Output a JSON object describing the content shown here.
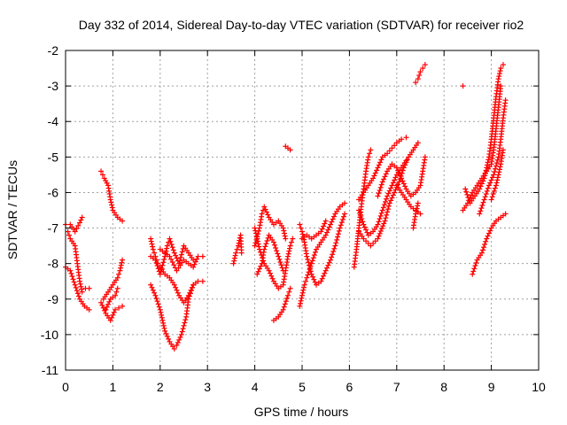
{
  "chart_data": {
    "type": "scatter",
    "title": "Day 332 of 2014, Sidereal Day-to-day VTEC variation (SDTVAR) for receiver rio2",
    "xlabel": "GPS time / hours",
    "ylabel": "SDTVAR / TECUs",
    "xlim": [
      0,
      10
    ],
    "ylim": [
      -11,
      -2
    ],
    "xticks": [
      "0",
      "1",
      "2",
      "3",
      "4",
      "5",
      "6",
      "7",
      "8",
      "9",
      "10"
    ],
    "yticks": [
      "-2",
      "-3",
      "-4",
      "-5",
      "-6",
      "-7",
      "-8",
      "-9",
      "-10",
      "-11"
    ],
    "grid": true,
    "marker": "plus",
    "color": "#ff0000",
    "tracks": [
      [
        [
          0,
          -6.9
        ],
        [
          0.1,
          -6.9
        ],
        [
          0.2,
          -7.1
        ],
        [
          0.3,
          -6.85
        ],
        [
          0.35,
          -6.7
        ]
      ],
      [
        [
          0.05,
          -7.1
        ],
        [
          0.1,
          -7.3
        ],
        [
          0.2,
          -7.5
        ],
        [
          0.25,
          -8.0
        ],
        [
          0.3,
          -8.5
        ],
        [
          0.35,
          -8.8
        ],
        [
          0.42,
          -8.7
        ],
        [
          0.5,
          -8.7
        ]
      ],
      [
        [
          0,
          -8.1
        ],
        [
          0.1,
          -8.2
        ],
        [
          0.2,
          -8.6
        ],
        [
          0.3,
          -9.0
        ],
        [
          0.4,
          -9.2
        ],
        [
          0.5,
          -9.3
        ]
      ],
      [
        [
          0.75,
          -5.4
        ],
        [
          0.82,
          -5.6
        ],
        [
          0.9,
          -5.8
        ],
        [
          0.95,
          -6.2
        ],
        [
          1.0,
          -6.5
        ],
        [
          1.1,
          -6.7
        ],
        [
          1.2,
          -6.8
        ]
      ],
      [
        [
          0.75,
          -9.1
        ],
        [
          0.85,
          -9.4
        ],
        [
          0.95,
          -9.6
        ],
        [
          1.05,
          -9.3
        ],
        [
          1.2,
          -9.2
        ]
      ],
      [
        [
          0.8,
          -9.0
        ],
        [
          0.9,
          -8.8
        ],
        [
          1.0,
          -8.6
        ],
        [
          1.1,
          -8.4
        ],
        [
          1.15,
          -8.2
        ],
        [
          1.2,
          -7.9
        ]
      ],
      [
        [
          0.85,
          -9.3
        ],
        [
          0.95,
          -9.0
        ],
        [
          1.05,
          -8.9
        ],
        [
          1.1,
          -8.7
        ]
      ],
      [
        [
          1.8,
          -7.3
        ],
        [
          1.85,
          -7.6
        ],
        [
          1.9,
          -7.8
        ],
        [
          1.95,
          -8.0
        ],
        [
          2.0,
          -8.1
        ],
        [
          2.1,
          -8.3
        ],
        [
          2.2,
          -8.4
        ],
        [
          2.3,
          -8.6
        ],
        [
          2.4,
          -8.9
        ],
        [
          2.5,
          -9.1
        ],
        [
          2.6,
          -8.9
        ],
        [
          2.7,
          -8.6
        ],
        [
          2.8,
          -8.5
        ],
        [
          2.9,
          -8.5
        ]
      ],
      [
        [
          1.8,
          -8.6
        ],
        [
          1.9,
          -8.9
        ],
        [
          2.0,
          -9.3
        ],
        [
          2.05,
          -9.6
        ],
        [
          2.1,
          -9.9
        ],
        [
          2.2,
          -10.2
        ],
        [
          2.3,
          -10.4
        ],
        [
          2.35,
          -10.3
        ],
        [
          2.45,
          -10.0
        ],
        [
          2.55,
          -9.5
        ],
        [
          2.6,
          -9.0
        ],
        [
          2.7,
          -8.6
        ]
      ],
      [
        [
          1.8,
          -7.8
        ],
        [
          1.9,
          -7.9
        ],
        [
          2.0,
          -8.3
        ],
        [
          2.1,
          -7.8
        ],
        [
          2.15,
          -7.5
        ],
        [
          2.2,
          -7.3
        ],
        [
          2.3,
          -7.7
        ],
        [
          2.4,
          -8.0
        ],
        [
          2.5,
          -7.5
        ],
        [
          2.6,
          -7.7
        ],
        [
          2.7,
          -7.9
        ]
      ],
      [
        [
          2.0,
          -7.6
        ],
        [
          2.2,
          -7.8
        ],
        [
          2.35,
          -8.2
        ],
        [
          2.5,
          -7.9
        ],
        [
          2.6,
          -8.0
        ],
        [
          2.7,
          -8.1
        ],
        [
          2.8,
          -7.8
        ],
        [
          2.9,
          -7.8
        ]
      ],
      [
        [
          3.55,
          -8.0
        ],
        [
          3.6,
          -7.7
        ],
        [
          3.65,
          -7.5
        ],
        [
          3.7,
          -7.2
        ],
        [
          3.72,
          -7.7
        ]
      ],
      [
        [
          4.0,
          -7.0
        ],
        [
          4.05,
          -7.3
        ],
        [
          4.1,
          -7.6
        ],
        [
          4.2,
          -8.0
        ],
        [
          4.3,
          -8.2
        ],
        [
          4.4,
          -8.5
        ],
        [
          4.5,
          -8.7
        ],
        [
          4.6,
          -8.6
        ],
        [
          4.65,
          -8.2
        ],
        [
          4.7,
          -7.8
        ],
        [
          4.75,
          -7.5
        ],
        [
          4.8,
          -7.3
        ]
      ],
      [
        [
          4.0,
          -7.5
        ],
        [
          4.1,
          -7.0
        ],
        [
          4.15,
          -6.6
        ],
        [
          4.2,
          -6.4
        ],
        [
          4.3,
          -6.7
        ],
        [
          4.4,
          -6.9
        ],
        [
          4.5,
          -6.8
        ],
        [
          4.6,
          -7.0
        ],
        [
          4.65,
          -7.3
        ]
      ],
      [
        [
          4.05,
          -8.3
        ],
        [
          4.15,
          -8.0
        ],
        [
          4.2,
          -7.6
        ],
        [
          4.3,
          -7.2
        ],
        [
          4.4,
          -7.4
        ],
        [
          4.5,
          -7.8
        ],
        [
          4.6,
          -8.2
        ]
      ],
      [
        [
          4.4,
          -9.6
        ],
        [
          4.5,
          -9.5
        ],
        [
          4.6,
          -9.3
        ],
        [
          4.7,
          -8.9
        ],
        [
          4.75,
          -8.7
        ]
      ],
      [
        [
          4.65,
          -4.7
        ],
        [
          4.75,
          -4.8
        ]
      ],
      [
        [
          4.95,
          -9.2
        ],
        [
          5.0,
          -8.9
        ],
        [
          5.05,
          -8.6
        ],
        [
          5.1,
          -8.4
        ],
        [
          5.2,
          -8.0
        ],
        [
          5.3,
          -7.6
        ],
        [
          5.4,
          -7.4
        ],
        [
          5.5,
          -7.2
        ],
        [
          5.6,
          -6.9
        ],
        [
          5.7,
          -6.6
        ],
        [
          5.8,
          -6.4
        ],
        [
          5.9,
          -6.3
        ]
      ],
      [
        [
          4.95,
          -6.9
        ],
        [
          5.0,
          -7.1
        ],
        [
          5.05,
          -7.4
        ],
        [
          5.1,
          -7.8
        ],
        [
          5.2,
          -8.3
        ],
        [
          5.3,
          -8.6
        ],
        [
          5.4,
          -8.5
        ],
        [
          5.5,
          -8.2
        ],
        [
          5.6,
          -7.9
        ],
        [
          5.7,
          -7.5
        ],
        [
          5.8,
          -7.0
        ],
        [
          5.9,
          -6.6
        ]
      ],
      [
        [
          5.0,
          -7.3
        ],
        [
          5.1,
          -7.2
        ],
        [
          5.2,
          -7.3
        ],
        [
          5.3,
          -7.2
        ],
        [
          5.4,
          -7.1
        ],
        [
          5.5,
          -6.8
        ]
      ],
      [
        [
          6.1,
          -8.1
        ],
        [
          6.15,
          -7.6
        ],
        [
          6.2,
          -7.0
        ],
        [
          6.25,
          -6.4
        ],
        [
          6.3,
          -5.9
        ],
        [
          6.35,
          -5.4
        ],
        [
          6.4,
          -5.0
        ],
        [
          6.45,
          -4.8
        ]
      ],
      [
        [
          6.2,
          -7.1
        ],
        [
          6.3,
          -7.3
        ],
        [
          6.45,
          -7.5
        ],
        [
          6.6,
          -7.3
        ],
        [
          6.75,
          -6.8
        ],
        [
          6.85,
          -6.3
        ],
        [
          6.95,
          -6.0
        ],
        [
          7.05,
          -5.7
        ],
        [
          7.15,
          -5.3
        ],
        [
          7.25,
          -5.0
        ],
        [
          7.35,
          -4.8
        ],
        [
          7.45,
          -4.6
        ]
      ],
      [
        [
          6.2,
          -6.5
        ],
        [
          6.3,
          -6.9
        ],
        [
          6.4,
          -7.2
        ],
        [
          6.5,
          -7.1
        ],
        [
          6.6,
          -6.9
        ],
        [
          6.7,
          -6.5
        ],
        [
          6.8,
          -6.1
        ],
        [
          6.9,
          -5.8
        ],
        [
          7.0,
          -5.5
        ],
        [
          7.1,
          -5.3
        ],
        [
          7.2,
          -5.1
        ]
      ],
      [
        [
          6.2,
          -6.2
        ],
        [
          6.3,
          -6.0
        ],
        [
          6.4,
          -5.8
        ],
        [
          6.5,
          -5.6
        ],
        [
          6.6,
          -5.3
        ],
        [
          6.7,
          -5.0
        ],
        [
          6.8,
          -4.9
        ],
        [
          6.9,
          -4.75
        ],
        [
          7.0,
          -4.6
        ],
        [
          7.1,
          -4.5
        ],
        [
          7.2,
          -4.45
        ]
      ],
      [
        [
          6.6,
          -6.1
        ],
        [
          6.7,
          -5.7
        ],
        [
          6.8,
          -5.4
        ],
        [
          6.9,
          -5.2
        ],
        [
          7.0,
          -5.3
        ],
        [
          7.1,
          -5.6
        ],
        [
          7.2,
          -5.9
        ],
        [
          7.3,
          -6.1
        ],
        [
          7.4,
          -6.0
        ],
        [
          7.5,
          -5.8
        ],
        [
          7.55,
          -5.4
        ],
        [
          7.6,
          -5.0
        ]
      ],
      [
        [
          7.0,
          -5.8
        ],
        [
          7.1,
          -6.0
        ],
        [
          7.2,
          -6.2
        ],
        [
          7.3,
          -6.4
        ],
        [
          7.4,
          -6.5
        ],
        [
          7.5,
          -6.6
        ]
      ],
      [
        [
          7.35,
          -7.0
        ],
        [
          7.4,
          -6.6
        ],
        [
          7.45,
          -6.3
        ]
      ],
      [
        [
          7.4,
          -2.9
        ],
        [
          7.45,
          -2.8
        ],
        [
          7.5,
          -2.6
        ],
        [
          7.55,
          -2.5
        ],
        [
          7.6,
          -2.4
        ]
      ],
      [
        [
          8.4,
          -3.0
        ]
      ],
      [
        [
          8.4,
          -6.5
        ],
        [
          8.5,
          -6.3
        ],
        [
          8.6,
          -6.0
        ],
        [
          8.7,
          -5.8
        ],
        [
          8.8,
          -5.6
        ],
        [
          8.9,
          -5.4
        ],
        [
          9.0,
          -5.2
        ],
        [
          9.05,
          -4.8
        ],
        [
          9.1,
          -4.2
        ],
        [
          9.15,
          -3.6
        ],
        [
          9.2,
          -3.0
        ]
      ],
      [
        [
          8.45,
          -5.9
        ],
        [
          8.55,
          -6.3
        ],
        [
          8.65,
          -6.1
        ],
        [
          8.75,
          -5.9
        ],
        [
          8.85,
          -5.6
        ],
        [
          8.95,
          -5.0
        ],
        [
          9.0,
          -4.5
        ],
        [
          9.05,
          -3.9
        ],
        [
          9.1,
          -3.3
        ],
        [
          9.15,
          -2.8
        ],
        [
          9.2,
          -2.5
        ],
        [
          9.25,
          -2.4
        ]
      ],
      [
        [
          8.6,
          -8.3
        ],
        [
          8.7,
          -7.9
        ],
        [
          8.8,
          -7.7
        ],
        [
          8.9,
          -7.3
        ],
        [
          9.0,
          -7.0
        ],
        [
          9.1,
          -6.8
        ],
        [
          9.2,
          -6.7
        ],
        [
          9.3,
          -6.6
        ]
      ],
      [
        [
          8.75,
          -6.6
        ],
        [
          8.85,
          -6.2
        ],
        [
          8.95,
          -5.8
        ],
        [
          9.05,
          -5.5
        ],
        [
          9.15,
          -5.0
        ],
        [
          9.2,
          -4.5
        ],
        [
          9.25,
          -3.9
        ],
        [
          9.3,
          -3.4
        ]
      ],
      [
        [
          9.0,
          -6.2
        ],
        [
          9.1,
          -5.8
        ],
        [
          9.2,
          -5.2
        ],
        [
          9.25,
          -4.8
        ]
      ]
    ]
  }
}
